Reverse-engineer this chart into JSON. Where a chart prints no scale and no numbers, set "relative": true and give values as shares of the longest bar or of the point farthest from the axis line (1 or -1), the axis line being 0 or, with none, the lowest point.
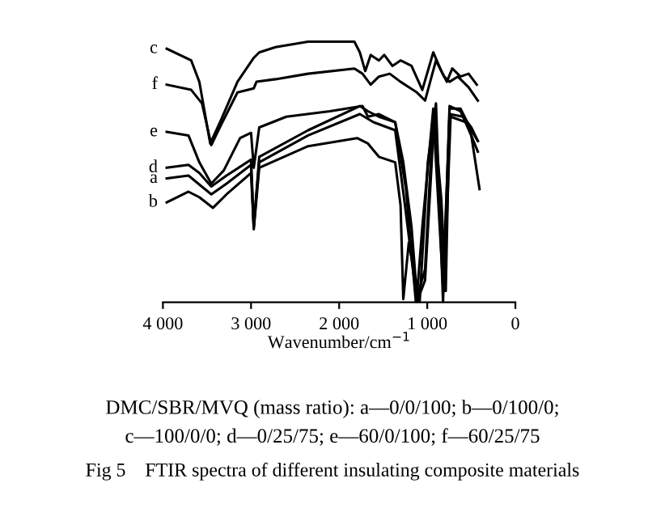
{
  "chart_data": {
    "type": "line",
    "relative": true,
    "xlabel": "Wavenumber/cm$^{−1}$",
    "xlim": [
      4000,
      0
    ],
    "xticks": [
      {
        "value": 4000,
        "label": "4 000"
      },
      {
        "value": 3000,
        "label": "3 000"
      },
      {
        "value": 2000,
        "label": "2 000"
      },
      {
        "value": 1000,
        "label": "1 000"
      },
      0
    ],
    "legend": false,
    "grid": false,
    "marker": "none",
    "line_style": "solid",
    "series": [
      {
        "name": "c",
        "color": "#000000",
        "x": [
          3957,
          3679,
          3587,
          3463,
          3340,
          3154,
          2969,
          2907,
          2722,
          2352,
          1827,
          1765,
          1704,
          1642,
          1549,
          1488,
          1395,
          1303,
          1179,
          1056,
          932,
          840,
          778,
          716,
          623,
          531,
          438
        ],
        "values": [
          0.973,
          0.928,
          0.846,
          0.609,
          0.7,
          0.846,
          0.938,
          0.959,
          0.979,
          1,
          1,
          0.959,
          0.887,
          0.949,
          0.928,
          0.949,
          0.907,
          0.928,
          0.907,
          0.815,
          0.959,
          0.887,
          0.846,
          0.897,
          0.866,
          0.877,
          0.835
        ]
      },
      {
        "name": "f",
        "color": "#000000",
        "x": [
          3957,
          3679,
          3556,
          3451,
          3340,
          3154,
          2969,
          2938,
          2722,
          2352,
          1827,
          1735,
          1642,
          1549,
          1426,
          1303,
          1117,
          1025,
          901,
          809,
          747,
          654,
          531,
          426
        ],
        "values": [
          0.835,
          0.815,
          0.763,
          0.603,
          0.681,
          0.805,
          0.821,
          0.846,
          0.856,
          0.877,
          0.897,
          0.877,
          0.835,
          0.866,
          0.877,
          0.846,
          0.805,
          0.774,
          0.928,
          0.866,
          0.846,
          0.866,
          0.825,
          0.774
        ]
      },
      {
        "name": "e",
        "color": "#000000",
        "x": [
          3957,
          3710,
          3587,
          3451,
          3309,
          3124,
          3000,
          2969,
          2907,
          2599,
          2105,
          1735,
          1673,
          1549,
          1364,
          1272,
          1179,
          1117,
          1056,
          932,
          840,
          790,
          747,
          623,
          500,
          426
        ],
        "values": [
          0.654,
          0.64,
          0.537,
          0.455,
          0.506,
          0.63,
          0.65,
          0.516,
          0.671,
          0.712,
          0.733,
          0.753,
          0.712,
          0.722,
          0.691,
          0.537,
          0.29,
          0.023,
          0.29,
          0.743,
          0.393,
          0.043,
          0.743,
          0.743,
          0.66,
          0.619
        ]
      },
      {
        "name": "d",
        "color": "#000000",
        "x": [
          3957,
          3710,
          3587,
          3451,
          3278,
          3000,
          2969,
          2907,
          2352,
          1765,
          1673,
          1549,
          1364,
          1241,
          1130,
          1025,
          932,
          821,
          747,
          593,
          500,
          426
        ],
        "values": [
          0.516,
          0.527,
          0.496,
          0.444,
          0.486,
          0.547,
          0.29,
          0.558,
          0.66,
          0.753,
          0.733,
          0.712,
          0.691,
          0.434,
          0.002,
          0.126,
          0.722,
          0.064,
          0.722,
          0.712,
          0.671,
          0.619
        ]
      },
      {
        "name": "a",
        "color": "#000000",
        "x": [
          3957,
          3710,
          3451,
          3278,
          3000,
          2969,
          2907,
          2352,
          1765,
          1611,
          1364,
          1253,
          1117,
          1025,
          920,
          809,
          735,
          562,
          426
        ],
        "values": [
          0.475,
          0.486,
          0.414,
          0.455,
          0.527,
          0.29,
          0.537,
          0.64,
          0.722,
          0.691,
          0.66,
          0.372,
          0.002,
          0.084,
          0.712,
          0.043,
          0.712,
          0.691,
          0.578
        ]
      },
      {
        "name": "b",
        "color": "#000000",
        "x": [
          3957,
          3710,
          3587,
          3432,
          3278,
          3000,
          2969,
          2907,
          2352,
          1796,
          1673,
          1549,
          1364,
          1303,
          1272,
          1210,
          1086,
          994,
          901,
          821,
          747,
          623,
          500,
          407
        ],
        "values": [
          0.383,
          0.424,
          0.403,
          0.362,
          0.414,
          0.496,
          0.28,
          0.516,
          0.599,
          0.63,
          0.609,
          0.558,
          0.537,
          0.372,
          0.012,
          0.228,
          0.002,
          0.537,
          0.763,
          0.002,
          0.753,
          0.733,
          0.64,
          0.434
        ]
      }
    ],
    "annotations": [
      "DMC/SBR/MVQ (mass ratio): a—0/0/100; b—0/100/0;",
      "c—100/0/0; d—0/25/75; e—60/0/100; f—60/25/75",
      "Fig 5    FTIR spectra of different insulating composite materials"
    ]
  }
}
